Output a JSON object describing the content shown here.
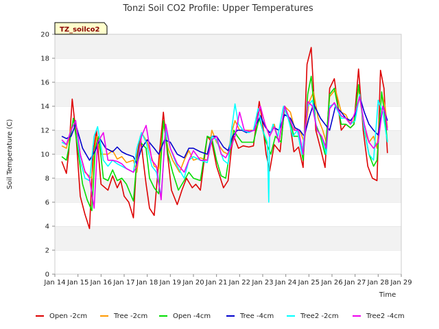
{
  "chart_data": {
    "type": "line",
    "title": "Tonzi Soil CO2 Profile: Upper Temperatures",
    "xlabel": "Time",
    "ylabel": "Soil Temperature (C)",
    "badge": "TZ_soilco2",
    "xlim": [
      14,
      29
    ],
    "ylim": [
      0,
      20
    ],
    "yticks": [
      0,
      2,
      4,
      6,
      8,
      10,
      12,
      14,
      16,
      18,
      20
    ],
    "xticks": [
      14,
      15,
      16,
      17,
      18,
      19,
      20,
      21,
      22,
      23,
      24,
      25,
      26,
      27,
      28,
      29
    ],
    "xtick_labels": [
      "Jan 14",
      "Jan 15",
      "Jan 16",
      "Jan 17",
      "Jan 18",
      "Jan 19",
      "Jan 20",
      "Jan 21",
      "Jan 22",
      "Jan 23",
      "Jan 24",
      "Jan 25",
      "Jan 26",
      "Jan 27",
      "Jan 28",
      "Jan 29"
    ],
    "grid": "horizontal bands",
    "legend_position": "bottom",
    "series": [
      {
        "name": "Open -2cm",
        "color": "#dd0000",
        "x": [
          14.3,
          14.5,
          14.6,
          14.75,
          14.9,
          15.1,
          15.3,
          15.5,
          15.65,
          15.8,
          16.0,
          16.3,
          16.5,
          16.7,
          16.85,
          17.0,
          17.2,
          17.4,
          17.55,
          17.7,
          17.95,
          18.1,
          18.3,
          18.5,
          18.7,
          18.85,
          19.05,
          19.3,
          19.5,
          19.7,
          19.95,
          20.1,
          20.3,
          20.6,
          20.8,
          21.0,
          21.3,
          21.5,
          21.65,
          21.75,
          21.95,
          22.15,
          22.4,
          22.6,
          22.85,
          23.0,
          23.15,
          23.3,
          23.5,
          23.75,
          23.95,
          24.15,
          24.35,
          24.55,
          24.75,
          24.92,
          25.1,
          25.3,
          25.5,
          25.7,
          25.9,
          26.1,
          26.4,
          26.6,
          26.8,
          26.95,
          27.15,
          27.35,
          27.55,
          27.75,
          27.95,
          28.1,
          28.25,
          28.4
        ],
        "y": [
          9.4,
          8.4,
          10.2,
          14.6,
          12.0,
          6.5,
          5.0,
          3.8,
          10.0,
          12.0,
          7.5,
          7.0,
          8.2,
          7.2,
          7.8,
          6.5,
          6.0,
          4.7,
          9.8,
          11.5,
          7.5,
          5.5,
          4.9,
          9.5,
          13.5,
          10.5,
          7.0,
          5.8,
          7.0,
          8.0,
          7.2,
          7.5,
          7.0,
          11.5,
          11.0,
          9.0,
          7.2,
          7.8,
          10.5,
          11.5,
          10.5,
          10.7,
          10.6,
          10.7,
          14.4,
          12.5,
          10.0,
          8.6,
          10.8,
          10.2,
          14.0,
          13.0,
          10.2,
          10.6,
          8.9,
          17.5,
          18.9,
          12.0,
          10.5,
          8.9,
          15.5,
          16.3,
          12.0,
          12.5,
          12.2,
          12.5,
          17.1,
          12.0,
          9.0,
          8.0,
          7.8,
          17.0,
          15.5,
          10.1
        ]
      },
      {
        "name": "Tree -2cm",
        "color": "#ff9900",
        "x": [
          14.3,
          14.5,
          14.7,
          14.9,
          15.1,
          15.3,
          15.6,
          15.8,
          16.0,
          16.3,
          16.5,
          16.7,
          16.9,
          17.1,
          17.4,
          17.55,
          17.75,
          18.0,
          18.3,
          18.5,
          18.7,
          18.9,
          19.1,
          19.4,
          19.6,
          19.8,
          20.0,
          20.3,
          20.6,
          20.8,
          21.0,
          21.3,
          21.5,
          21.65,
          21.8,
          22.0,
          22.2,
          22.45,
          22.65,
          22.9,
          23.1,
          23.3,
          23.5,
          23.7,
          23.95,
          24.2,
          24.4,
          24.6,
          24.8,
          25.0,
          25.2,
          25.4,
          25.6,
          25.75,
          25.9,
          26.15,
          26.4,
          26.6,
          26.8,
          26.95,
          27.15,
          27.4,
          27.6,
          27.8,
          27.95,
          28.15,
          28.3,
          28.4
        ],
        "y": [
          10.7,
          10.5,
          12.2,
          12.5,
          10.0,
          8.5,
          8.0,
          11.5,
          10.0,
          10.0,
          10.3,
          9.6,
          9.8,
          9.3,
          9.5,
          8.5,
          11.8,
          11.0,
          9.0,
          8.8,
          12.5,
          10.5,
          9.5,
          8.5,
          9.5,
          10.3,
          9.5,
          9.7,
          9.5,
          12.0,
          11.0,
          10.2,
          10.0,
          11.8,
          12.8,
          12.0,
          12.0,
          12.0,
          12.0,
          14.0,
          12.5,
          11.5,
          12.5,
          11.0,
          14.0,
          13.5,
          12.0,
          12.0,
          11.0,
          14.3,
          15.2,
          13.0,
          12.0,
          11.0,
          14.8,
          15.4,
          13.5,
          13.3,
          12.5,
          12.8,
          15.5,
          12.0,
          11.0,
          11.5,
          10.5,
          15.0,
          14.0,
          12.2
        ]
      },
      {
        "name": "Open -4cm",
        "color": "#00dd00",
        "x": [
          14.3,
          14.5,
          14.6,
          14.8,
          14.95,
          15.2,
          15.4,
          15.6,
          15.75,
          15.9,
          16.1,
          16.3,
          16.5,
          16.7,
          16.9,
          17.1,
          17.4,
          17.55,
          17.7,
          17.95,
          18.1,
          18.3,
          18.5,
          18.7,
          18.9,
          19.1,
          19.35,
          19.6,
          19.8,
          20.0,
          20.3,
          20.6,
          20.8,
          21.0,
          21.2,
          21.4,
          21.6,
          21.75,
          21.9,
          22.1,
          22.35,
          22.6,
          22.85,
          23.0,
          23.15,
          23.35,
          23.55,
          23.8,
          23.95,
          24.15,
          24.35,
          24.55,
          24.75,
          24.95,
          25.1,
          25.3,
          25.5,
          25.7,
          25.9,
          26.1,
          26.4,
          26.6,
          26.8,
          26.95,
          27.15,
          27.4,
          27.6,
          27.8,
          27.95,
          28.15,
          28.3,
          28.4
        ],
        "y": [
          9.8,
          9.5,
          10.5,
          13.0,
          11.0,
          7.5,
          6.2,
          5.3,
          10.5,
          11.5,
          8.0,
          7.8,
          8.7,
          7.8,
          8.0,
          7.5,
          6.1,
          9.5,
          11.0,
          10.5,
          8.0,
          7.2,
          6.7,
          12.8,
          10.0,
          8.5,
          7.0,
          7.8,
          8.5,
          8.0,
          7.8,
          11.5,
          11.3,
          9.5,
          8.2,
          8.0,
          10.5,
          12.0,
          11.5,
          11.0,
          11.0,
          11.0,
          13.0,
          12.0,
          11.0,
          10.0,
          11.5,
          11.0,
          14.0,
          13.0,
          11.5,
          11.5,
          9.5,
          15.0,
          16.5,
          12.5,
          11.5,
          10.0,
          15.0,
          15.5,
          12.5,
          12.5,
          12.2,
          12.5,
          15.8,
          12.0,
          10.0,
          9.0,
          9.5,
          15.2,
          13.0,
          11.0
        ]
      },
      {
        "name": "Tree -4cm",
        "color": "#0000cc",
        "x": [
          14.3,
          14.5,
          14.7,
          14.9,
          15.2,
          15.5,
          15.75,
          15.95,
          16.2,
          16.5,
          16.7,
          16.9,
          17.1,
          17.4,
          17.55,
          17.75,
          18.0,
          18.3,
          18.5,
          18.75,
          19.0,
          19.3,
          19.6,
          19.8,
          20.0,
          20.3,
          20.6,
          20.8,
          21.0,
          21.3,
          21.5,
          21.7,
          21.9,
          22.1,
          22.3,
          22.6,
          22.9,
          23.1,
          23.3,
          23.5,
          23.7,
          23.95,
          24.2,
          24.4,
          24.6,
          24.8,
          25.0,
          25.2,
          25.5,
          25.7,
          25.9,
          26.15,
          26.4,
          26.6,
          26.8,
          27.0,
          27.2,
          27.4,
          27.6,
          27.8,
          28.0,
          28.2,
          28.4
        ],
        "y": [
          11.5,
          11.3,
          11.5,
          12.5,
          10.5,
          9.5,
          10.3,
          11.3,
          10.5,
          10.2,
          10.6,
          10.2,
          10.0,
          9.8,
          9.2,
          10.5,
          11.2,
          10.5,
          10.0,
          11.2,
          11.0,
          10.0,
          9.7,
          10.5,
          10.5,
          10.2,
          10.0,
          11.5,
          11.5,
          10.6,
          10.3,
          11.5,
          12.0,
          12.0,
          11.8,
          12.0,
          13.2,
          12.3,
          11.8,
          12.2,
          12.0,
          13.3,
          13.0,
          12.2,
          12.0,
          11.5,
          13.0,
          14.2,
          13.0,
          12.5,
          12.0,
          14.0,
          13.5,
          13.0,
          12.8,
          13.3,
          14.8,
          13.5,
          12.5,
          12.0,
          11.6,
          14.0,
          12.8
        ]
      },
      {
        "name": "Tree2 -2cm",
        "color": "#00ffff",
        "x": [
          14.3,
          14.5,
          14.7,
          14.9,
          15.1,
          15.3,
          15.5,
          15.7,
          15.85,
          16.1,
          16.3,
          16.5,
          16.7,
          16.9,
          17.1,
          17.4,
          17.55,
          17.75,
          17.95,
          18.2,
          18.4,
          18.6,
          18.8,
          19.0,
          19.3,
          19.6,
          19.8,
          20.0,
          20.3,
          20.6,
          20.8,
          21.0,
          21.3,
          21.5,
          21.65,
          21.8,
          21.95,
          22.15,
          22.4,
          22.6,
          22.8,
          23.0,
          23.2,
          23.26,
          23.3,
          23.45,
          23.65,
          23.9,
          24.1,
          24.3,
          24.5,
          24.7,
          24.95,
          25.15,
          25.35,
          25.55,
          25.75,
          25.9,
          26.1,
          26.4,
          26.6,
          26.8,
          27.0,
          27.2,
          27.4,
          27.6,
          27.8,
          28.0,
          28.2,
          28.4
        ],
        "y": [
          11.0,
          10.8,
          12.0,
          12.8,
          9.5,
          8.0,
          7.8,
          11.5,
          12.3,
          9.5,
          9.0,
          9.5,
          9.2,
          9.0,
          8.8,
          8.5,
          10.5,
          11.8,
          11.0,
          9.0,
          8.5,
          6.5,
          12.0,
          10.5,
          9.0,
          8.0,
          9.5,
          9.8,
          9.5,
          9.3,
          11.5,
          11.2,
          9.5,
          9.2,
          12.0,
          14.2,
          12.5,
          12.0,
          11.8,
          12.0,
          13.8,
          12.0,
          11.0,
          6.0,
          11.5,
          12.5,
          11.5,
          14.0,
          13.0,
          11.5,
          12.0,
          10.0,
          14.0,
          14.5,
          12.0,
          11.5,
          10.0,
          14.0,
          14.2,
          13.0,
          13.0,
          12.5,
          12.8,
          15.0,
          12.0,
          10.0,
          9.5,
          14.5,
          13.5,
          11.0
        ]
      },
      {
        "name": "Tree2 -4cm",
        "color": "#ee00ee",
        "x": [
          14.3,
          14.5,
          14.7,
          14.9,
          15.1,
          15.3,
          15.5,
          15.7,
          15.85,
          16.1,
          16.3,
          16.5,
          16.7,
          16.9,
          17.1,
          17.4,
          17.55,
          17.75,
          17.95,
          18.2,
          18.4,
          18.6,
          18.8,
          19.0,
          19.3,
          19.6,
          19.8,
          20.0,
          20.3,
          20.6,
          20.8,
          21.0,
          21.2,
          21.4,
          21.6,
          21.8,
          22.0,
          22.2,
          22.45,
          22.65,
          22.9,
          23.1,
          23.3,
          23.5,
          23.7,
          23.95,
          24.15,
          24.35,
          24.55,
          24.75,
          24.95,
          25.15,
          25.35,
          25.55,
          25.75,
          25.9,
          26.1,
          26.4,
          26.6,
          26.8,
          27.0,
          27.2,
          27.4,
          27.6,
          27.8,
          28.0,
          28.2,
          28.3,
          28.4
        ],
        "y": [
          11.2,
          10.8,
          12.0,
          12.8,
          10.0,
          8.6,
          8.0,
          5.5,
          11.0,
          11.8,
          9.5,
          9.5,
          9.4,
          9.2,
          8.8,
          8.5,
          9.0,
          11.5,
          12.4,
          9.5,
          9.0,
          6.2,
          12.5,
          10.5,
          9.2,
          8.5,
          9.5,
          10.3,
          9.5,
          9.5,
          11.2,
          11.5,
          10.0,
          9.7,
          10.5,
          11.5,
          13.5,
          12.0,
          11.9,
          12.0,
          14.0,
          12.5,
          11.5,
          12.3,
          11.0,
          14.0,
          13.0,
          12.0,
          12.0,
          10.0,
          14.4,
          14.0,
          12.0,
          11.5,
          10.5,
          13.8,
          14.3,
          13.2,
          13.0,
          12.5,
          13.5,
          14.8,
          12.5,
          11.0,
          10.5,
          11.0,
          14.0,
          13.5,
          12.0
        ]
      }
    ]
  }
}
